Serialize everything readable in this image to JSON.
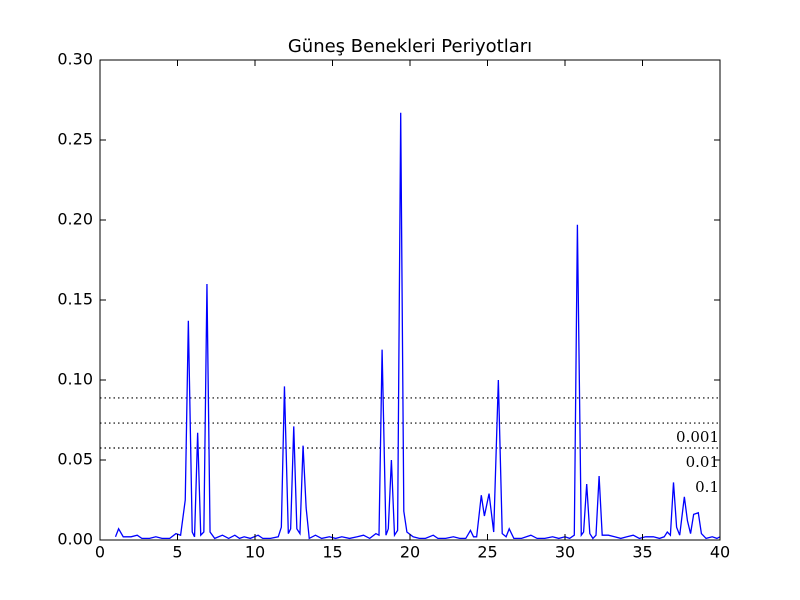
{
  "chart_data": {
    "type": "line",
    "title": "Güneş Benekleri Periyotları",
    "x": [
      1.0,
      1.2,
      1.5,
      2.0,
      2.4,
      2.7,
      3.2,
      3.6,
      4.0,
      4.5,
      4.9,
      5.2,
      5.5,
      5.7,
      5.95,
      6.1,
      6.3,
      6.5,
      6.7,
      6.9,
      7.1,
      7.4,
      7.9,
      8.3,
      8.7,
      9.0,
      9.3,
      9.7,
      10.2,
      10.5,
      11.0,
      11.5,
      11.7,
      11.9,
      12.15,
      12.3,
      12.5,
      12.7,
      12.9,
      13.1,
      13.3,
      13.5,
      13.9,
      14.3,
      14.8,
      15.2,
      15.6,
      16.1,
      16.6,
      17.0,
      17.4,
      17.8,
      18.0,
      18.2,
      18.45,
      18.6,
      18.8,
      19.0,
      19.2,
      19.4,
      19.6,
      19.8,
      20.2,
      20.6,
      21.0,
      21.5,
      21.8,
      22.3,
      22.8,
      23.2,
      23.6,
      23.9,
      24.1,
      24.3,
      24.6,
      24.8,
      25.1,
      25.4,
      25.7,
      25.95,
      26.2,
      26.4,
      26.7,
      27.2,
      27.8,
      28.2,
      28.7,
      29.2,
      29.6,
      30.0,
      30.3,
      30.6,
      30.8,
      31.05,
      31.2,
      31.4,
      31.6,
      31.8,
      32.0,
      32.2,
      32.4,
      32.8,
      33.2,
      33.6,
      34.0,
      34.4,
      34.8,
      35.2,
      35.7,
      36.1,
      36.4,
      36.6,
      36.8,
      37.0,
      37.2,
      37.4,
      37.7,
      37.9,
      38.1,
      38.3,
      38.6,
      38.8,
      39.1,
      39.5,
      39.8,
      40.0
    ],
    "series": [
      {
        "color": "#0000ff",
        "values": [
          0.002,
          0.007,
          0.002,
          0.002,
          0.003,
          0.001,
          0.001,
          0.002,
          0.001,
          0.001,
          0.004,
          0.003,
          0.025,
          0.137,
          0.005,
          0.002,
          0.067,
          0.003,
          0.005,
          0.16,
          0.005,
          0.001,
          0.003,
          0.001,
          0.003,
          0.001,
          0.002,
          0.001,
          0.003,
          0.001,
          0.001,
          0.002,
          0.008,
          0.096,
          0.004,
          0.007,
          0.071,
          0.007,
          0.004,
          0.059,
          0.02,
          0.001,
          0.003,
          0.001,
          0.002,
          0.001,
          0.002,
          0.001,
          0.002,
          0.003,
          0.001,
          0.004,
          0.003,
          0.119,
          0.003,
          0.007,
          0.05,
          0.003,
          0.006,
          0.267,
          0.018,
          0.005,
          0.002,
          0.001,
          0.001,
          0.003,
          0.001,
          0.001,
          0.002,
          0.001,
          0.001,
          0.006,
          0.002,
          0.002,
          0.028,
          0.015,
          0.029,
          0.005,
          0.1,
          0.004,
          0.002,
          0.007,
          0.001,
          0.001,
          0.003,
          0.001,
          0.001,
          0.002,
          0.001,
          0.002,
          0.001,
          0.003,
          0.197,
          0.003,
          0.005,
          0.035,
          0.004,
          0.001,
          0.003,
          0.04,
          0.003,
          0.003,
          0.002,
          0.001,
          0.002,
          0.003,
          0.001,
          0.002,
          0.002,
          0.001,
          0.002,
          0.005,
          0.003,
          0.036,
          0.008,
          0.003,
          0.027,
          0.012,
          0.004,
          0.016,
          0.017,
          0.004,
          0.001,
          0.002,
          0.001,
          0.002
        ]
      }
    ],
    "significance_levels": [
      {
        "value": 0.0888,
        "label": "0.001"
      },
      {
        "value": 0.0731,
        "label": "0.01"
      },
      {
        "value": 0.0575,
        "label": "0.1"
      }
    ],
    "xlim": [
      0,
      40
    ],
    "ylim": [
      0,
      0.3
    ],
    "xticks": [
      0,
      5,
      10,
      15,
      20,
      25,
      30,
      35,
      40
    ],
    "yticks": [
      {
        "value": 0,
        "label": "0.00"
      },
      {
        "value": 0.05,
        "label": "0.05"
      },
      {
        "value": 0.1,
        "label": "0.10"
      },
      {
        "value": 0.15,
        "label": "0.15"
      },
      {
        "value": 0.2,
        "label": "0.20"
      },
      {
        "value": 0.25,
        "label": "0.25"
      },
      {
        "value": 0.3,
        "label": "0.30"
      }
    ]
  }
}
